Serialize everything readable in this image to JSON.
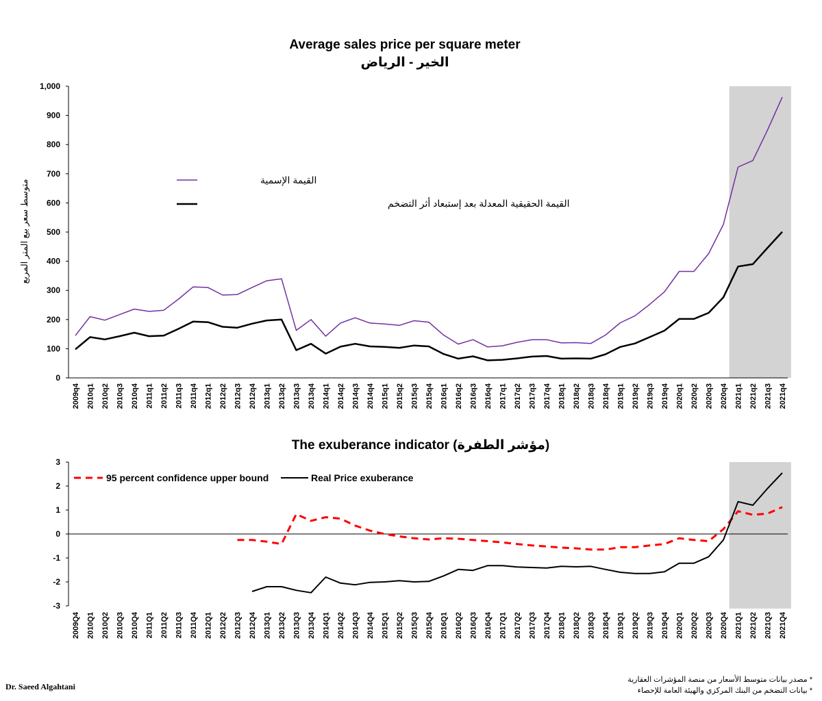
{
  "colors": {
    "nominal": "#7030a0",
    "real": "#000000",
    "bound": "#ff0000",
    "shade": "#d3d3d3"
  },
  "chart_data": [
    {
      "type": "line",
      "title": "Average sales price per square meter",
      "subtitle": "الخير - الرياض",
      "ylabel": "متوسط سعر بيع المتر المربع",
      "ylim": [
        0,
        1000
      ],
      "yticks": [
        "0",
        "100",
        "200",
        "300",
        "400",
        "500",
        "600",
        "700",
        "800",
        "900",
        "1,000"
      ],
      "highlight_range": [
        "2021q1",
        "2021q4"
      ],
      "categories": [
        "2009q4",
        "2010q1",
        "2010q2",
        "2010q3",
        "2010q4",
        "2011q1",
        "2011q2",
        "2011q3",
        "2011q4",
        "2012q1",
        "2012q2",
        "2012q3",
        "2012q4",
        "2013q1",
        "2013q2",
        "2013q3",
        "2013q4",
        "2014q1",
        "2014q2",
        "2014q3",
        "2014q4",
        "2015q1",
        "2015q2",
        "2015q3",
        "2015q4",
        "2016q1",
        "2016q2",
        "2016q3",
        "2016q4",
        "2017q1",
        "2017q2",
        "2017q3",
        "2017q4",
        "2018q1",
        "2018q2",
        "2018q3",
        "2018q4",
        "2019q1",
        "2019q2",
        "2019q3",
        "2019q4",
        "2020q1",
        "2020q2",
        "2020q3",
        "2020q4",
        "2021q1",
        "2021q2",
        "2021q3",
        "2021q4"
      ],
      "series": [
        {
          "name": "القيمة الإسمية",
          "values": [
            145,
            210,
            198,
            217,
            236,
            228,
            232,
            270,
            312,
            310,
            284,
            286,
            310,
            333,
            340,
            163,
            200,
            143,
            188,
            206,
            188,
            185,
            180,
            196,
            191,
            147,
            116,
            131,
            106,
            110,
            122,
            131,
            131,
            120,
            121,
            118,
            147,
            189,
            213,
            252,
            295,
            365,
            365,
            426,
            526,
            723,
            745,
            850,
            963
          ]
        },
        {
          "name": "القيمة الحقيقية المعدلة بعد إستبعاد أثر التضخم",
          "values": [
            98,
            140,
            132,
            143,
            155,
            143,
            145,
            168,
            193,
            191,
            175,
            172,
            186,
            197,
            200,
            95,
            117,
            83,
            107,
            117,
            108,
            106,
            103,
            111,
            108,
            82,
            66,
            74,
            60,
            62,
            67,
            73,
            75,
            66,
            67,
            66,
            81,
            106,
            118,
            140,
            162,
            202,
            202,
            223,
            276,
            382,
            390,
            446,
            501
          ]
        }
      ]
    },
    {
      "type": "line",
      "title": "The exuberance indicator (مؤشر الطفرة)",
      "ylim": [
        -3,
        3
      ],
      "yticks": [
        "-3",
        "-2",
        "-1",
        "0",
        "1",
        "2",
        "3"
      ],
      "highlight_range": [
        "2021Q1",
        "2021Q4"
      ],
      "categories": [
        "2009Q4",
        "2010Q1",
        "2010Q2",
        "2010Q3",
        "2010Q4",
        "2011Q1",
        "2011Q2",
        "2011Q3",
        "2011Q4",
        "2012Q1",
        "2012Q2",
        "2012Q3",
        "2012Q4",
        "2013Q1",
        "2013Q2",
        "2013Q3",
        "2013Q4",
        "2014Q1",
        "2014Q2",
        "2014Q3",
        "2014Q4",
        "2015Q1",
        "2015Q2",
        "2015Q3",
        "2015Q4",
        "2016Q1",
        "2016Q2",
        "2016Q3",
        "2016Q4",
        "2017Q1",
        "2017Q2",
        "2017Q3",
        "2017Q4",
        "2018Q1",
        "2018Q2",
        "2018Q3",
        "2018Q4",
        "2019Q1",
        "2019Q2",
        "2019Q3",
        "2019Q4",
        "2020Q1",
        "2020Q2",
        "2020Q3",
        "2020Q4",
        "2021Q1",
        "2021Q2",
        "2021Q3",
        "2021Q4"
      ],
      "series": [
        {
          "name": "95 percent confidence upper bound",
          "style": "dashed",
          "values": [
            null,
            null,
            null,
            null,
            null,
            null,
            null,
            null,
            null,
            null,
            null,
            -0.25,
            -0.25,
            -0.32,
            -0.42,
            0.83,
            0.55,
            0.7,
            0.64,
            0.35,
            0.14,
            0.0,
            -0.1,
            -0.18,
            -0.23,
            -0.18,
            -0.2,
            -0.25,
            -0.3,
            -0.35,
            -0.42,
            -0.48,
            -0.52,
            -0.57,
            -0.6,
            -0.65,
            -0.65,
            -0.55,
            -0.55,
            -0.48,
            -0.42,
            -0.18,
            -0.25,
            -0.3,
            0.2,
            0.95,
            0.8,
            0.85,
            1.12
          ]
        },
        {
          "name": "Real Price exuberance",
          "style": "solid",
          "values": [
            null,
            null,
            null,
            null,
            null,
            null,
            null,
            null,
            null,
            null,
            null,
            null,
            -2.4,
            -2.2,
            -2.2,
            -2.35,
            -2.45,
            -1.8,
            -2.05,
            -2.12,
            -2.02,
            -2.0,
            -1.95,
            -2.0,
            -1.98,
            -1.75,
            -1.48,
            -1.52,
            -1.32,
            -1.32,
            -1.38,
            -1.4,
            -1.42,
            -1.35,
            -1.37,
            -1.35,
            -1.48,
            -1.6,
            -1.65,
            -1.65,
            -1.58,
            -1.22,
            -1.22,
            -0.95,
            -0.25,
            1.35,
            1.2,
            1.9,
            2.55
          ]
        }
      ]
    }
  ],
  "author": "Dr. Saeed Algahtani",
  "notes": [
    "* مصدر بيانات متوسط الأسعار من منصة المؤشرات العقارية",
    "* بيانات التضخم من البنك المركزي والهيئة العامة للإحصاء"
  ]
}
